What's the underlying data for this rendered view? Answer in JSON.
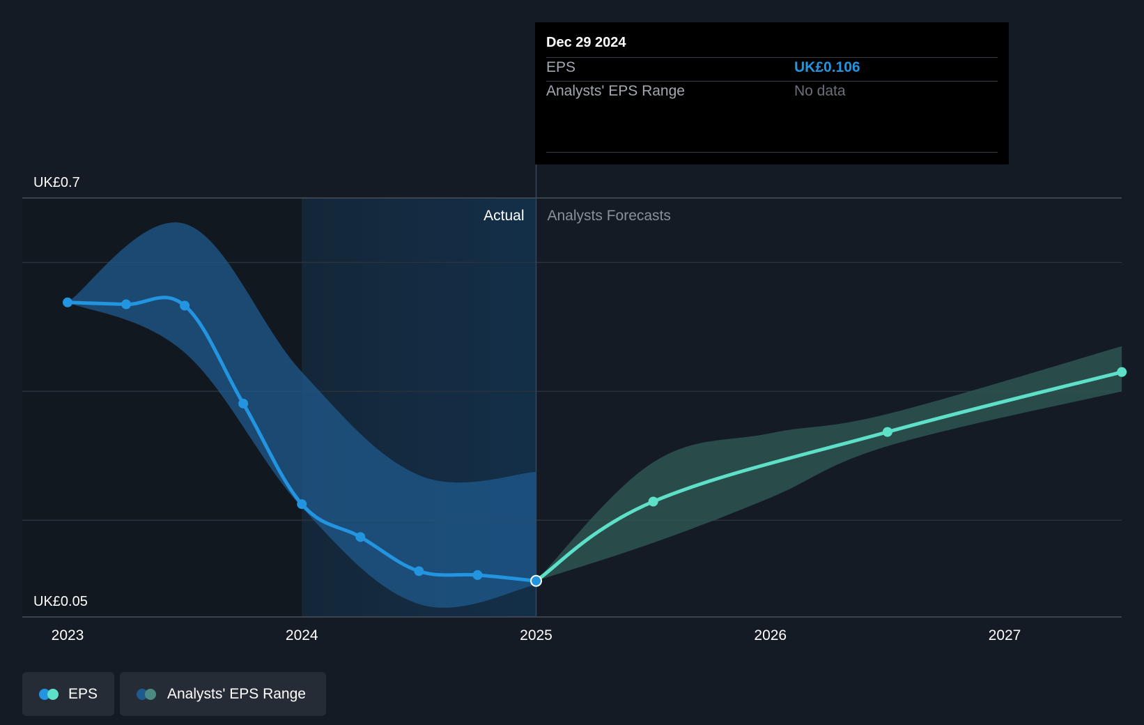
{
  "tooltip": {
    "date": "Dec 29 2024",
    "eps_label": "EPS",
    "eps_value": "UK£0.106",
    "range_label": "Analysts' EPS Range",
    "range_value": "No data"
  },
  "labels": {
    "actual": "Actual",
    "forecast": "Analysts Forecasts"
  },
  "legend": {
    "eps": "EPS",
    "range": "Analysts' EPS Range"
  },
  "colors": {
    "background": "#151b24",
    "eps_actual": "#2394df",
    "eps_forecast": "#5ee0c8",
    "range_actual": "#1f5a8c",
    "range_forecast": "#2e5753",
    "tooltip_value": "#2394df"
  },
  "chart_data": {
    "type": "line",
    "x_unit": "year",
    "xlim": [
      2023,
      2027.5
    ],
    "ylim": [
      0.05,
      0.7
    ],
    "y_tick_labels": [
      {
        "value": 0.7,
        "label": "UK£0.7"
      },
      {
        "value": 0.05,
        "label": "UK£0.05"
      }
    ],
    "gridlines_y": [
      0.6,
      0.4,
      0.2
    ],
    "x_ticks": [
      {
        "value": 2023,
        "label": "2023"
      },
      {
        "value": 2024,
        "label": "2024"
      },
      {
        "value": 2025,
        "label": "2025"
      },
      {
        "value": 2026,
        "label": "2026"
      },
      {
        "value": 2027,
        "label": "2027"
      }
    ],
    "highlight_range": [
      2024,
      2025
    ],
    "divider_x": 2025,
    "series": [
      {
        "name": "EPS",
        "segment": "actual",
        "x": [
          2023.0,
          2023.25,
          2023.5,
          2023.75,
          2024.0,
          2024.25,
          2024.5,
          2024.75,
          2025.0
        ],
        "y": [
          0.538,
          0.535,
          0.533,
          0.381,
          0.225,
          0.174,
          0.121,
          0.115,
          0.106
        ]
      },
      {
        "name": "EPS",
        "segment": "forecast",
        "x": [
          2025.0,
          2025.5,
          2026.5,
          2027.5
        ],
        "y": [
          0.106,
          0.229,
          0.337,
          0.43
        ]
      }
    ],
    "ranges": [
      {
        "name": "Analysts' EPS Range",
        "segment": "actual",
        "x": [
          2023.0,
          2023.5,
          2024.0,
          2024.5,
          2025.0
        ],
        "high": [
          0.538,
          0.66,
          0.43,
          0.27,
          0.275
        ],
        "low": [
          0.538,
          0.46,
          0.22,
          0.07,
          0.1
        ]
      },
      {
        "name": "Analysts' EPS Range",
        "segment": "forecast",
        "x": [
          2025.0,
          2025.5,
          2026.0,
          2026.5,
          2027.5
        ],
        "high": [
          0.106,
          0.29,
          0.335,
          0.365,
          0.47
        ],
        "low": [
          0.106,
          0.165,
          0.235,
          0.315,
          0.4
        ]
      }
    ]
  }
}
